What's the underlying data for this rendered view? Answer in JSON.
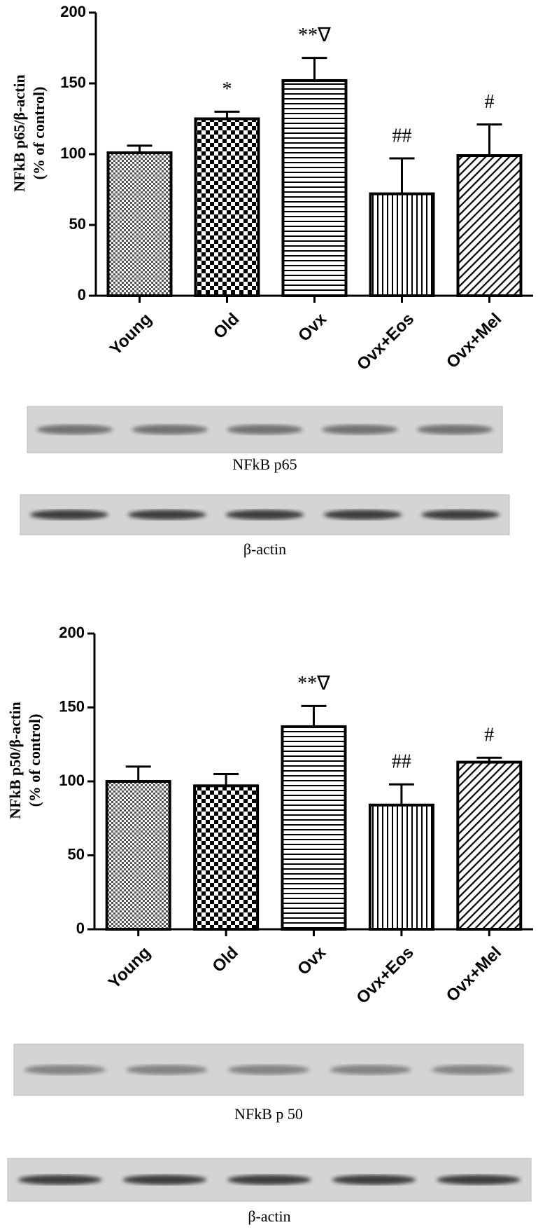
{
  "chart_data": [
    {
      "type": "bar",
      "ylabel": [
        "NFkB p65/β-actin",
        "(% of control)"
      ],
      "categories": [
        "Young",
        "Old",
        "Ovx",
        "Ovx+Eos",
        "Ovx+Mel"
      ],
      "values": [
        101,
        125,
        152,
        72,
        99
      ],
      "errors": [
        5,
        5,
        16,
        25,
        22
      ],
      "annotations": [
        null,
        "*",
        "**∇",
        "##",
        "#"
      ],
      "ylim": [
        0,
        200
      ],
      "yticks": [
        0,
        50,
        100,
        150,
        200
      ],
      "color": "#000000",
      "blots": [
        "NFkB p65",
        "β-actin"
      ]
    },
    {
      "type": "bar",
      "ylabel": [
        "NFkB p50/β-actin",
        "(% of control)"
      ],
      "categories": [
        "Young",
        "Old",
        "Ovx",
        "Ovx+Eos",
        "Ovx+Mel"
      ],
      "values": [
        100,
        97,
        137,
        84,
        113
      ],
      "errors": [
        10,
        8,
        14,
        14,
        3
      ],
      "annotations": [
        null,
        null,
        "**∇",
        "##",
        "#"
      ],
      "ylim": [
        0,
        200
      ],
      "yticks": [
        0,
        50,
        100,
        150,
        200
      ],
      "color": "#000000",
      "blots": [
        "NFkB p 50",
        "β-actin"
      ]
    }
  ]
}
